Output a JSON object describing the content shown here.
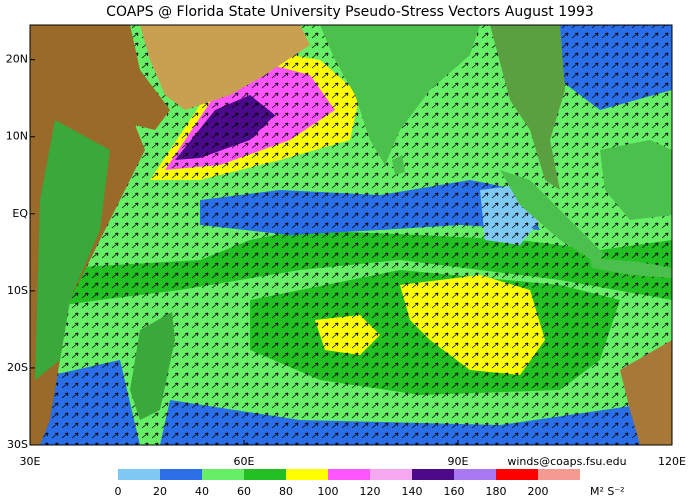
{
  "title": "COAPS @ Florida State University Pseudo-Stress Vectors  August 1993",
  "map": {
    "lonlim": [
      30,
      120
    ],
    "latlim": [
      -30,
      24.5
    ],
    "lat_ticks": [
      {
        "value": 20,
        "label": "20N"
      },
      {
        "value": 10,
        "label": "10N"
      },
      {
        "value": 0,
        "label": "EQ"
      },
      {
        "value": -10,
        "label": "10S"
      },
      {
        "value": -20,
        "label": "20S"
      },
      {
        "value": -30,
        "label": "30S"
      }
    ],
    "lon_ticks": [
      {
        "value": 30,
        "label": "30E"
      },
      {
        "value": 60,
        "label": "60E"
      },
      {
        "value": 90,
        "label": "90E"
      },
      {
        "value": 120,
        "label": "120E"
      }
    ]
  },
  "credit": "winds@coaps.fsu.edu",
  "colorbar": {
    "ticks": [
      0,
      20,
      40,
      60,
      80,
      100,
      120,
      140,
      160,
      180,
      200
    ],
    "colors": [
      "#7ec8f4",
      "#2a6ee8",
      "#66ee66",
      "#22c022",
      "#ffff00",
      "#ff55ff",
      "#f5a8f0",
      "#4a0a8a",
      "#a878f0",
      "#ff0000",
      "#f59a90"
    ],
    "unit": "M² S⁻²"
  }
}
